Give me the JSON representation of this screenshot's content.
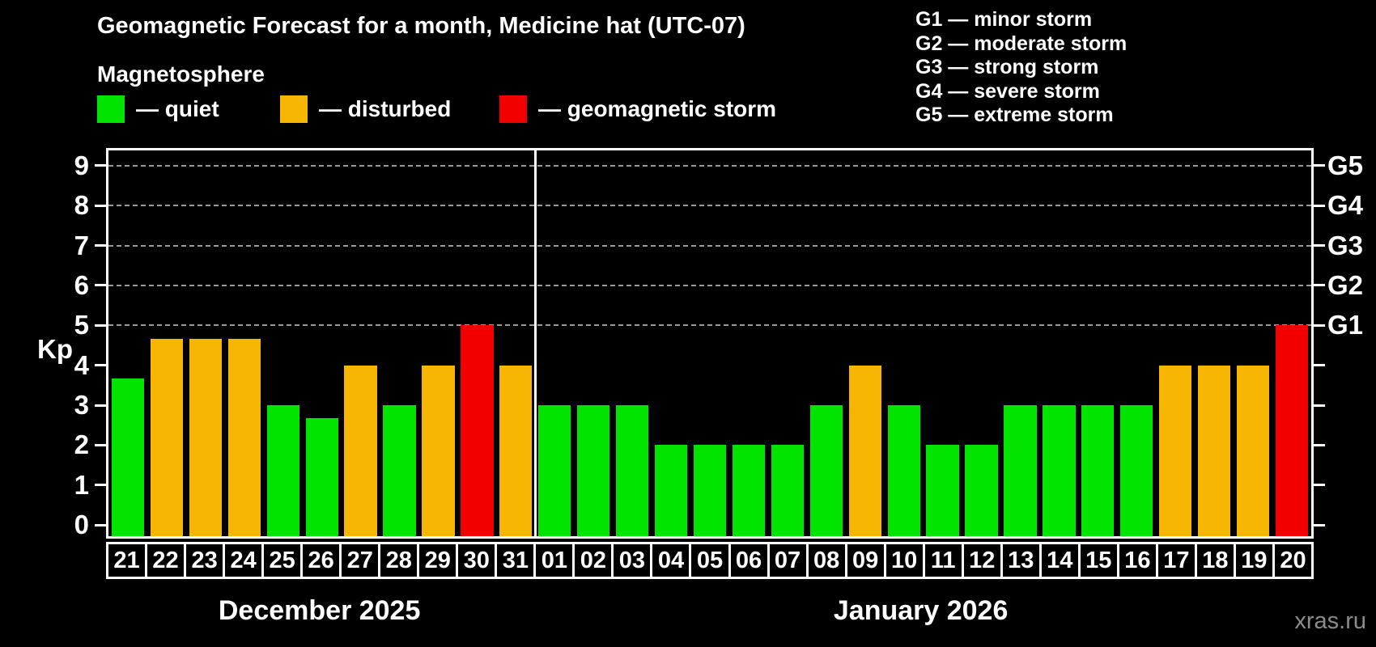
{
  "title": "Geomagnetic Forecast for a month, Medicine hat (UTC-07)",
  "subtitle": "Magnetosphere",
  "watermark": "xras.ru",
  "colors": {
    "quiet": "#00e400",
    "disturbed": "#f6b500",
    "storm": "#f20000",
    "grid": "#999999",
    "axis": "#ffffff",
    "background": "#000000"
  },
  "legend": {
    "items": [
      {
        "key": "quiet",
        "label": "— quiet"
      },
      {
        "key": "disturbed",
        "label": "— disturbed"
      },
      {
        "key": "storm",
        "label": "— geomagnetic storm"
      }
    ]
  },
  "storm_scale_legend": [
    "G1 — minor storm",
    "G2 — moderate storm",
    "G3 — strong storm",
    "G4 — severe storm",
    "G5 — extreme storm"
  ],
  "axis": {
    "ylabel": "Kp",
    "yticks": [
      0,
      1,
      2,
      3,
      4,
      5,
      6,
      7,
      8,
      9
    ],
    "right_labels": [
      {
        "value": 5,
        "label": "G1"
      },
      {
        "value": 6,
        "label": "G2"
      },
      {
        "value": 7,
        "label": "G3"
      },
      {
        "value": 8,
        "label": "G4"
      },
      {
        "value": 9,
        "label": "G5"
      }
    ]
  },
  "chart_data": {
    "type": "bar",
    "title": "Geomagnetic Forecast for a month, Medicine hat (UTC-07)",
    "ylabel": "Kp",
    "ylim": [
      -0.28,
      9.38
    ],
    "gridlines_at": [
      5,
      6,
      7,
      8,
      9
    ],
    "legend_position": "top-left",
    "groups": [
      {
        "month": "December 2025",
        "days": [
          "21",
          "22",
          "23",
          "24",
          "25",
          "26",
          "27",
          "28",
          "29",
          "30",
          "31"
        ],
        "values": [
          3.67,
          4.67,
          4.67,
          4.67,
          3.0,
          2.67,
          4.0,
          3.0,
          4.0,
          5.0,
          4.0
        ],
        "status": [
          "quiet",
          "disturbed",
          "disturbed",
          "disturbed",
          "quiet",
          "quiet",
          "disturbed",
          "quiet",
          "disturbed",
          "storm",
          "disturbed"
        ]
      },
      {
        "month": "January 2026",
        "days": [
          "01",
          "02",
          "03",
          "04",
          "05",
          "06",
          "07",
          "08",
          "09",
          "10",
          "11",
          "12",
          "13",
          "14",
          "15",
          "16",
          "17",
          "18",
          "19",
          "20"
        ],
        "values": [
          3,
          3,
          3,
          2,
          2,
          2,
          2,
          3,
          4,
          3,
          2,
          2,
          3,
          3,
          3,
          3,
          4,
          4,
          4,
          5
        ],
        "status": [
          "quiet",
          "quiet",
          "quiet",
          "quiet",
          "quiet",
          "quiet",
          "quiet",
          "quiet",
          "disturbed",
          "quiet",
          "quiet",
          "quiet",
          "quiet",
          "quiet",
          "quiet",
          "quiet",
          "disturbed",
          "disturbed",
          "disturbed",
          "storm"
        ]
      }
    ]
  }
}
